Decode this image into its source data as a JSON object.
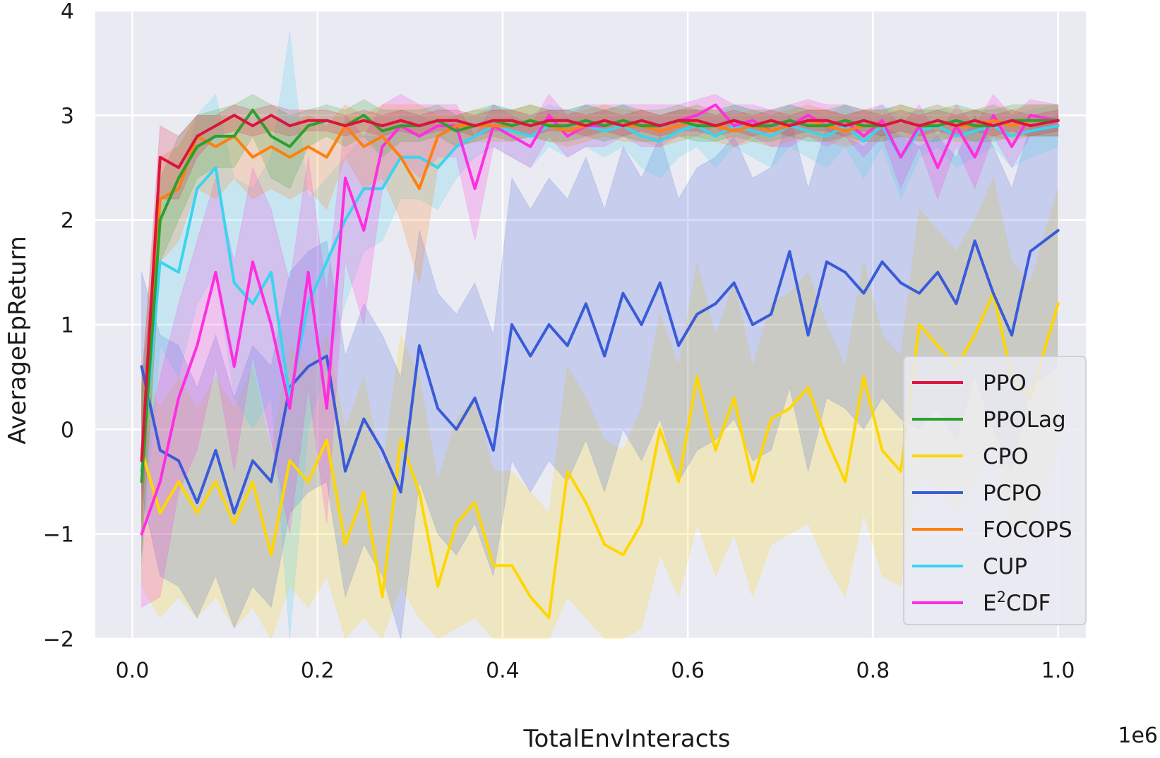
{
  "chart_data": {
    "type": "line",
    "xlabel": "TotalEnvInteracts",
    "ylabel": "AverageEpReturn",
    "x_scale_label": "1e6",
    "xlim": [
      -0.04,
      1.03
    ],
    "ylim": [
      -2,
      4
    ],
    "x_ticks": [
      0.0,
      0.2,
      0.4,
      0.6,
      0.8,
      1.0
    ],
    "x_tick_labels": [
      "0.0",
      "0.2",
      "0.4",
      "0.6",
      "0.8",
      "1.0"
    ],
    "y_ticks": [
      -2,
      -1,
      0,
      1,
      2,
      3,
      4
    ],
    "y_tick_labels": [
      "−2",
      "−1",
      "0",
      "1",
      "2",
      "3",
      "4"
    ],
    "grid": true,
    "legend_position": "lower-right",
    "x": [
      0.01,
      0.03,
      0.05,
      0.07,
      0.09,
      0.11,
      0.13,
      0.15,
      0.17,
      0.19,
      0.21,
      0.23,
      0.25,
      0.27,
      0.29,
      0.31,
      0.33,
      0.35,
      0.37,
      0.39,
      0.41,
      0.43,
      0.45,
      0.47,
      0.49,
      0.51,
      0.53,
      0.55,
      0.57,
      0.59,
      0.61,
      0.63,
      0.65,
      0.67,
      0.69,
      0.71,
      0.73,
      0.75,
      0.77,
      0.79,
      0.81,
      0.83,
      0.85,
      0.87,
      0.89,
      0.91,
      0.93,
      0.95,
      0.97,
      1.0
    ],
    "series": [
      {
        "name": "PPO",
        "color": "#dc143c",
        "values": [
          -0.3,
          2.6,
          2.5,
          2.8,
          2.9,
          3.0,
          2.9,
          3.0,
          2.9,
          2.95,
          2.95,
          2.9,
          2.95,
          2.9,
          2.95,
          2.9,
          2.95,
          2.95,
          2.9,
          2.95,
          2.95,
          2.9,
          2.95,
          2.95,
          2.9,
          2.95,
          2.9,
          2.95,
          2.9,
          2.95,
          2.95,
          2.9,
          2.95,
          2.9,
          2.95,
          2.9,
          2.95,
          2.95,
          2.9,
          2.95,
          2.9,
          2.95,
          2.9,
          2.95,
          2.9,
          2.95,
          2.9,
          2.95,
          2.9,
          2.95
        ],
        "lower": [
          -0.9,
          2.2,
          2.2,
          2.6,
          2.8,
          2.85,
          2.8,
          2.85,
          2.8,
          2.85,
          2.85,
          2.8,
          2.85,
          2.8,
          2.85,
          2.8,
          2.85,
          2.85,
          2.8,
          2.85,
          2.85,
          2.8,
          2.85,
          2.85,
          2.8,
          2.85,
          2.8,
          2.85,
          2.8,
          2.85,
          2.85,
          2.8,
          2.85,
          2.8,
          2.85,
          2.8,
          2.85,
          2.85,
          2.8,
          2.85,
          2.8,
          2.85,
          2.8,
          2.85,
          2.8,
          2.85,
          2.8,
          2.85,
          2.8,
          2.85
        ],
        "upper": [
          0.4,
          2.9,
          2.8,
          3.0,
          3.0,
          3.1,
          3.05,
          3.1,
          3.05,
          3.05,
          3.05,
          3.0,
          3.05,
          3.0,
          3.05,
          3.0,
          3.05,
          3.05,
          3.0,
          3.05,
          3.05,
          3.0,
          3.05,
          3.05,
          3.0,
          3.05,
          3.0,
          3.05,
          3.0,
          3.05,
          3.05,
          3.0,
          3.05,
          3.0,
          3.05,
          3.0,
          3.05,
          3.05,
          3.0,
          3.05,
          3.0,
          3.05,
          3.0,
          3.05,
          3.0,
          3.05,
          3.0,
          3.05,
          3.0,
          3.05
        ]
      },
      {
        "name": "PPOLag",
        "color": "#2ca02c",
        "values": [
          -0.5,
          2.0,
          2.4,
          2.7,
          2.8,
          2.8,
          3.05,
          2.8,
          2.7,
          2.9,
          2.95,
          2.9,
          3.0,
          2.85,
          2.9,
          2.9,
          2.95,
          2.85,
          2.9,
          2.95,
          2.9,
          2.95,
          2.9,
          2.9,
          2.95,
          2.9,
          2.95,
          2.9,
          2.9,
          2.95,
          2.9,
          2.9,
          2.95,
          2.9,
          2.9,
          2.95,
          2.9,
          2.9,
          2.95,
          2.9,
          2.9,
          2.95,
          2.9,
          2.9,
          2.95,
          2.9,
          2.9,
          2.95,
          2.95,
          2.95
        ],
        "lower": [
          -1.2,
          1.6,
          2.0,
          2.4,
          2.5,
          2.5,
          2.8,
          2.4,
          2.3,
          2.7,
          2.8,
          2.7,
          2.8,
          2.6,
          2.75,
          2.75,
          2.8,
          2.7,
          2.75,
          2.8,
          2.75,
          2.8,
          2.75,
          2.75,
          2.8,
          2.75,
          2.8,
          2.75,
          2.75,
          2.8,
          2.75,
          2.75,
          2.8,
          2.75,
          2.75,
          2.8,
          2.75,
          2.75,
          2.8,
          2.75,
          2.75,
          2.8,
          2.75,
          2.75,
          2.8,
          2.75,
          2.75,
          2.8,
          2.8,
          2.8
        ],
        "upper": [
          0.3,
          2.4,
          2.8,
          3.0,
          3.05,
          3.1,
          3.2,
          3.1,
          3.0,
          3.05,
          3.1,
          3.05,
          3.15,
          3.05,
          3.05,
          3.05,
          3.1,
          3.0,
          3.05,
          3.1,
          3.05,
          3.1,
          3.05,
          3.05,
          3.1,
          3.05,
          3.1,
          3.05,
          3.05,
          3.1,
          3.05,
          3.05,
          3.1,
          3.05,
          3.05,
          3.1,
          3.05,
          3.05,
          3.1,
          3.05,
          3.05,
          3.1,
          3.05,
          3.05,
          3.1,
          3.05,
          3.05,
          3.1,
          3.1,
          3.1
        ]
      },
      {
        "name": "CPO",
        "color": "#ffd700",
        "values": [
          -0.2,
          -0.8,
          -0.5,
          -0.8,
          -0.5,
          -0.9,
          -0.5,
          -1.2,
          -0.3,
          -0.5,
          -0.1,
          -1.1,
          -0.6,
          -1.6,
          -0.1,
          -0.6,
          -1.5,
          -0.9,
          -0.7,
          -1.3,
          -1.3,
          -1.6,
          -1.8,
          -0.4,
          -0.7,
          -1.1,
          -1.2,
          -0.9,
          0.0,
          -0.5,
          0.5,
          -0.2,
          0.3,
          -0.5,
          0.1,
          0.2,
          0.4,
          -0.1,
          -0.5,
          0.5,
          -0.2,
          -0.4,
          1.0,
          0.8,
          0.6,
          0.9,
          1.3,
          0.5,
          0.3,
          1.2
        ],
        "lower": [
          -1.5,
          -1.8,
          -1.6,
          -1.8,
          -1.6,
          -1.9,
          -1.7,
          -2.0,
          -1.5,
          -1.7,
          -1.4,
          -2.0,
          -1.8,
          -2.0,
          -1.5,
          -1.8,
          -2.0,
          -1.9,
          -1.8,
          -2.0,
          -2.0,
          -2.0,
          -2.0,
          -1.6,
          -1.8,
          -2.0,
          -2.0,
          -1.9,
          -1.2,
          -1.6,
          -0.9,
          -1.4,
          -1.0,
          -1.6,
          -1.1,
          -1.0,
          -0.9,
          -1.3,
          -1.6,
          -0.8,
          -1.4,
          -1.5,
          -0.4,
          -0.6,
          -0.8,
          -0.5,
          -0.1,
          -0.9,
          -1.0,
          -0.2
        ],
        "upper": [
          0.6,
          0.2,
          0.5,
          0.2,
          0.5,
          0.2,
          0.6,
          -0.2,
          0.8,
          0.6,
          0.9,
          0.0,
          0.5,
          -0.4,
          0.9,
          0.5,
          -0.5,
          0.1,
          0.3,
          -0.4,
          -0.4,
          -0.6,
          -0.8,
          0.6,
          0.3,
          -0.1,
          -0.2,
          0.2,
          1.1,
          0.6,
          1.6,
          0.9,
          1.4,
          0.6,
          1.2,
          1.3,
          1.5,
          1.0,
          0.6,
          1.6,
          0.9,
          0.7,
          2.1,
          1.9,
          1.7,
          2.0,
          2.4,
          1.6,
          1.4,
          2.3
        ]
      },
      {
        "name": "PCPO",
        "color": "#3a5bd9",
        "values": [
          0.6,
          -0.2,
          -0.3,
          -0.7,
          -0.2,
          -0.8,
          -0.3,
          -0.5,
          0.4,
          0.6,
          0.7,
          -0.4,
          0.1,
          -0.2,
          -0.6,
          0.8,
          0.2,
          0.0,
          0.3,
          -0.2,
          1.0,
          0.7,
          1.0,
          0.8,
          1.2,
          0.7,
          1.3,
          1.0,
          1.4,
          0.8,
          1.1,
          1.2,
          1.4,
          1.0,
          1.1,
          1.7,
          0.9,
          1.6,
          1.5,
          1.3,
          1.6,
          1.4,
          1.3,
          1.5,
          1.2,
          1.8,
          1.3,
          0.9,
          1.7,
          1.9
        ],
        "lower": [
          -0.6,
          -1.4,
          -1.5,
          -1.8,
          -1.4,
          -1.9,
          -1.5,
          -1.7,
          -0.8,
          -0.6,
          -0.5,
          -1.6,
          -1.1,
          -1.4,
          -2.0,
          -0.5,
          -1.0,
          -1.2,
          -0.9,
          -1.4,
          -0.3,
          -0.6,
          -0.3,
          -0.5,
          -0.1,
          -0.6,
          0.0,
          -0.3,
          0.1,
          -0.5,
          -0.2,
          -0.1,
          0.1,
          -0.3,
          -0.2,
          0.4,
          -0.4,
          0.3,
          0.2,
          0.0,
          0.3,
          0.1,
          0.0,
          0.2,
          -0.1,
          0.5,
          0.0,
          -0.4,
          0.4,
          0.6
        ],
        "upper": [
          1.5,
          0.9,
          0.8,
          0.4,
          0.9,
          0.3,
          0.8,
          0.6,
          1.5,
          1.7,
          1.8,
          0.7,
          1.2,
          0.9,
          0.5,
          1.9,
          1.3,
          1.1,
          1.4,
          0.9,
          2.4,
          2.1,
          2.4,
          2.2,
          2.6,
          2.1,
          2.7,
          2.4,
          2.8,
          2.2,
          2.5,
          2.6,
          2.8,
          2.4,
          2.5,
          3.0,
          2.3,
          2.9,
          2.8,
          2.7,
          2.9,
          2.8,
          2.7,
          2.8,
          2.6,
          3.0,
          2.7,
          2.3,
          2.9,
          3.0
        ]
      },
      {
        "name": "FOCOPS",
        "color": "#ff7f0e",
        "values": [
          -0.3,
          2.2,
          2.3,
          2.8,
          2.7,
          2.8,
          2.6,
          2.7,
          2.6,
          2.7,
          2.6,
          2.9,
          2.7,
          2.8,
          2.6,
          2.3,
          2.8,
          2.9,
          2.9,
          2.9,
          2.9,
          2.95,
          2.9,
          2.85,
          2.9,
          2.95,
          2.9,
          2.9,
          2.85,
          2.9,
          2.95,
          2.9,
          2.85,
          2.9,
          2.85,
          2.9,
          2.95,
          2.9,
          2.85,
          2.9,
          2.9,
          2.95,
          2.9,
          2.95,
          2.9,
          2.9,
          2.95,
          2.9,
          2.95,
          2.95
        ],
        "lower": [
          -1.2,
          1.6,
          1.8,
          2.3,
          2.2,
          2.4,
          2.2,
          2.3,
          2.2,
          2.3,
          2.1,
          2.6,
          2.3,
          2.4,
          2.0,
          1.4,
          2.5,
          2.7,
          2.75,
          2.75,
          2.75,
          2.8,
          2.75,
          2.7,
          2.75,
          2.8,
          2.75,
          2.75,
          2.7,
          2.75,
          2.8,
          2.75,
          2.7,
          2.75,
          2.7,
          2.75,
          2.8,
          2.75,
          2.7,
          2.75,
          2.75,
          2.8,
          2.75,
          2.8,
          2.75,
          2.75,
          2.8,
          2.75,
          2.8,
          2.8
        ],
        "upper": [
          0.5,
          2.6,
          2.7,
          3.0,
          3.0,
          3.0,
          2.9,
          3.0,
          2.9,
          3.0,
          2.9,
          3.1,
          3.0,
          3.1,
          3.1,
          3.1,
          3.0,
          3.0,
          3.05,
          3.05,
          3.05,
          3.1,
          3.05,
          3.0,
          3.05,
          3.1,
          3.05,
          3.05,
          3.0,
          3.05,
          3.1,
          3.05,
          3.0,
          3.05,
          3.0,
          3.05,
          3.1,
          3.05,
          3.0,
          3.05,
          3.05,
          3.1,
          3.05,
          3.1,
          3.05,
          3.05,
          3.1,
          3.05,
          3.1,
          3.1
        ]
      },
      {
        "name": "CUP",
        "color": "#3ad4f0",
        "values": [
          -0.4,
          1.6,
          1.5,
          2.3,
          2.5,
          1.4,
          1.2,
          1.5,
          0.3,
          1.2,
          1.6,
          2.0,
          2.3,
          2.3,
          2.6,
          2.6,
          2.5,
          2.7,
          2.8,
          2.9,
          2.85,
          2.8,
          2.9,
          2.85,
          2.9,
          2.85,
          2.9,
          2.8,
          2.75,
          2.85,
          2.9,
          2.8,
          2.9,
          2.85,
          2.8,
          2.9,
          2.85,
          2.8,
          2.9,
          2.75,
          2.9,
          2.6,
          2.85,
          2.9,
          2.8,
          2.85,
          2.9,
          2.8,
          2.85,
          2.9
        ],
        "lower": [
          -1.3,
          0.8,
          0.5,
          1.2,
          1.5,
          0.3,
          0.0,
          0.3,
          -2.0,
          0.0,
          0.6,
          1.2,
          1.7,
          1.8,
          2.2,
          2.2,
          2.1,
          2.4,
          2.6,
          2.7,
          2.6,
          2.5,
          2.7,
          2.6,
          2.7,
          2.6,
          2.7,
          2.5,
          2.4,
          2.6,
          2.7,
          2.5,
          2.7,
          2.6,
          2.5,
          2.7,
          2.6,
          2.5,
          2.7,
          2.4,
          2.7,
          2.2,
          2.6,
          2.7,
          2.5,
          2.6,
          2.7,
          2.5,
          2.6,
          2.7
        ],
        "upper": [
          0.4,
          2.2,
          2.3,
          3.0,
          3.2,
          2.4,
          2.3,
          2.6,
          3.8,
          2.2,
          2.4,
          2.6,
          2.8,
          2.8,
          3.0,
          3.0,
          2.9,
          3.0,
          3.0,
          3.1,
          3.05,
          3.0,
          3.1,
          3.05,
          3.1,
          3.05,
          3.1,
          3.0,
          3.0,
          3.05,
          3.1,
          3.0,
          3.1,
          3.05,
          3.0,
          3.1,
          3.05,
          3.0,
          3.1,
          3.0,
          3.1,
          3.0,
          3.05,
          3.1,
          3.0,
          3.05,
          3.1,
          3.0,
          3.05,
          3.1
        ]
      },
      {
        "name": "E²CDF",
        "color": "#ff2ee0",
        "values": [
          -1.0,
          -0.5,
          0.3,
          0.8,
          1.5,
          0.6,
          1.6,
          1.0,
          0.2,
          1.5,
          0.2,
          2.4,
          1.9,
          2.7,
          2.9,
          2.8,
          2.9,
          2.9,
          2.3,
          2.9,
          2.8,
          2.7,
          3.0,
          2.8,
          2.9,
          2.9,
          2.95,
          2.9,
          2.9,
          2.95,
          3.0,
          3.1,
          2.9,
          2.95,
          2.85,
          2.9,
          3.0,
          2.9,
          2.95,
          2.8,
          2.95,
          2.6,
          2.9,
          2.5,
          2.9,
          2.6,
          3.0,
          2.7,
          3.0,
          2.95
        ],
        "lower": [
          -1.7,
          -1.6,
          -0.6,
          -0.2,
          0.6,
          -0.4,
          0.7,
          -0.1,
          -1.0,
          0.4,
          -0.9,
          1.6,
          1.0,
          2.3,
          2.6,
          2.4,
          2.6,
          2.6,
          1.8,
          2.7,
          2.6,
          2.5,
          2.8,
          2.6,
          2.7,
          2.7,
          2.8,
          2.7,
          2.7,
          2.8,
          2.8,
          2.9,
          2.7,
          2.8,
          2.7,
          2.7,
          2.8,
          2.7,
          2.8,
          2.6,
          2.8,
          2.3,
          2.7,
          2.2,
          2.7,
          2.3,
          2.8,
          2.5,
          2.8,
          2.8
        ],
        "upper": [
          -0.3,
          0.5,
          1.2,
          1.8,
          2.4,
          1.6,
          2.5,
          2.1,
          1.4,
          2.6,
          1.3,
          3.0,
          2.8,
          3.1,
          3.2,
          3.1,
          3.1,
          3.1,
          2.8,
          3.1,
          3.0,
          2.9,
          3.2,
          3.0,
          3.1,
          3.1,
          3.1,
          3.1,
          3.1,
          3.1,
          3.15,
          3.2,
          3.1,
          3.1,
          3.05,
          3.1,
          3.15,
          3.1,
          3.1,
          3.05,
          3.1,
          2.9,
          3.1,
          2.8,
          3.1,
          2.9,
          3.2,
          3.0,
          3.15,
          3.1
        ]
      }
    ]
  },
  "legend": {
    "items": [
      {
        "label": "PPO",
        "color": "#dc143c"
      },
      {
        "label": "PPOLag",
        "color": "#2ca02c"
      },
      {
        "label": "CPO",
        "color": "#ffd700"
      },
      {
        "label": "PCPO",
        "color": "#3a5bd9"
      },
      {
        "label": "FOCOPS",
        "color": "#ff7f0e"
      },
      {
        "label": "CUP",
        "color": "#3ad4f0"
      },
      {
        "label": "E",
        "sup": "2",
        "suffix": "CDF",
        "color": "#ff2ee0"
      }
    ]
  },
  "colors": {
    "plot_background": "#eaeaf2",
    "grid": "#ffffff"
  }
}
